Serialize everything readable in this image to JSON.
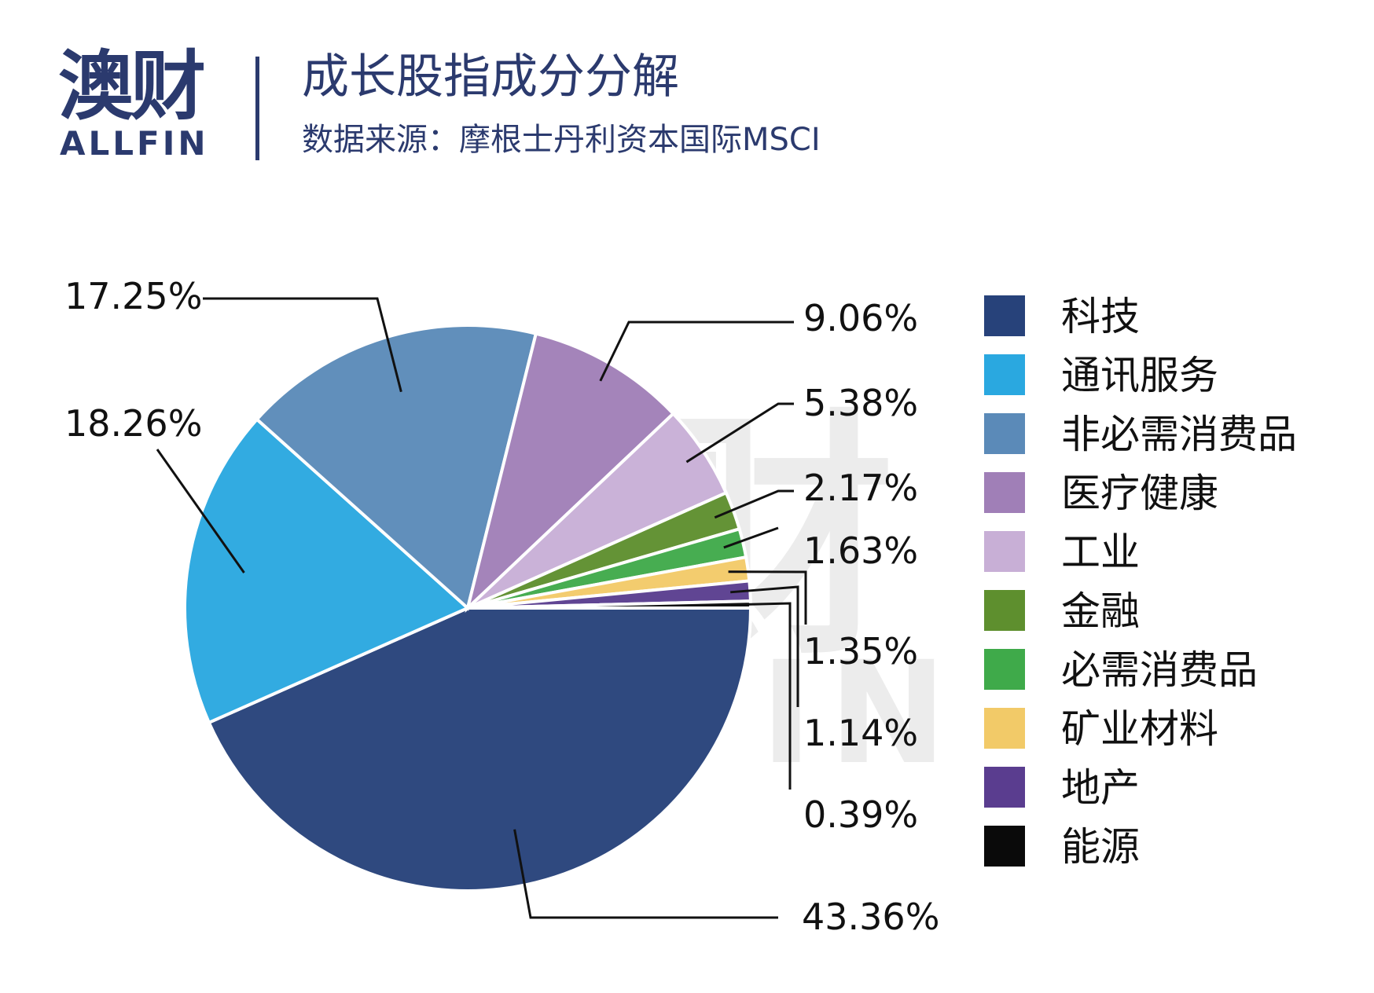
{
  "header": {
    "logo_cn": "澳财",
    "logo_en": "ALLFIN",
    "title": "成长股指成分分解",
    "source": "数据来源：摩根士丹利资本国际MSCI"
  },
  "watermark": {
    "cn": "澳财",
    "en": "ALLFIN"
  },
  "chart_data": {
    "type": "pie",
    "title": "成长股指成分分解",
    "legend_position": "right",
    "slices": [
      {
        "name": "科技",
        "value": 43.36,
        "label": "43.36%",
        "color": "#27427a"
      },
      {
        "name": "通讯服务",
        "value": 18.26,
        "label": "18.26%",
        "color": "#2aa8e0"
      },
      {
        "name": "非必需消费品",
        "value": 17.25,
        "label": "17.25%",
        "color": "#5b8ab8"
      },
      {
        "name": "医疗健康",
        "value": 9.06,
        "label": "9.06%",
        "color": "#a07fb7"
      },
      {
        "name": "工业",
        "value": 5.38,
        "label": "5.38%",
        "color": "#c8afd6"
      },
      {
        "name": "金融",
        "value": 2.17,
        "label": "2.17%",
        "color": "#5e8f2e"
      },
      {
        "name": "必需消费品",
        "value": 1.63,
        "label": "1.63%",
        "color": "#3faa4a"
      },
      {
        "name": "矿业材料",
        "value": 1.35,
        "label": "1.35%",
        "color": "#f2ca68"
      },
      {
        "name": "地产",
        "value": 1.14,
        "label": "1.14%",
        "color": "#5a3d8f"
      },
      {
        "name": "能源",
        "value": 0.39,
        "label": "0.39%",
        "color": "#0a0a0a"
      }
    ]
  }
}
